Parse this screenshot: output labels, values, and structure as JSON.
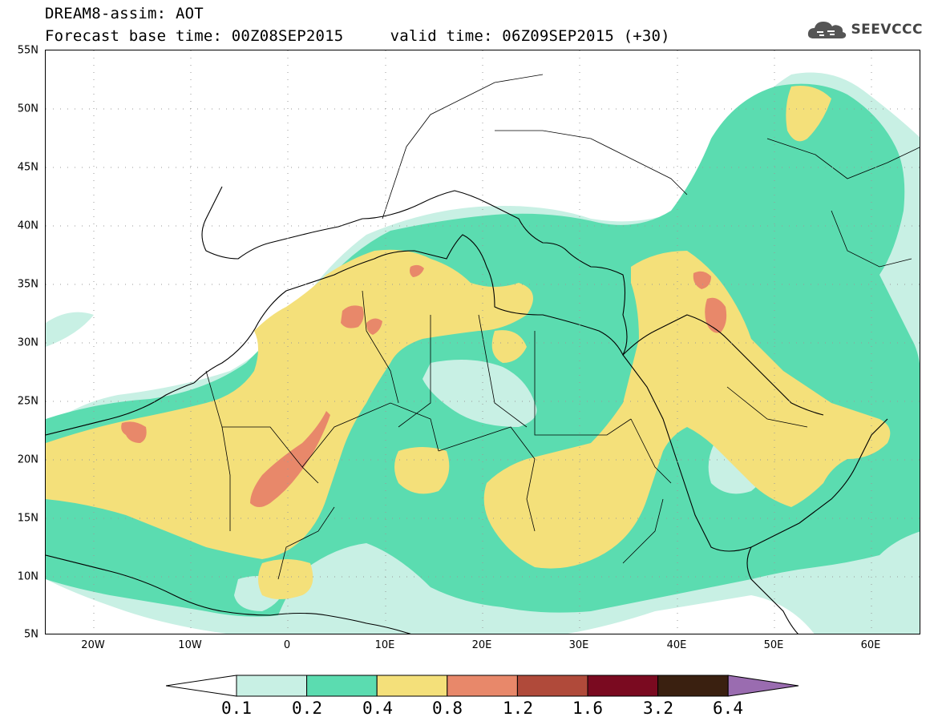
{
  "title": {
    "line1": "DREAM8-assim: AOT",
    "line2": "Forecast base time: 00Z08SEP2015     valid time: 06Z09SEP2015 (+30)"
  },
  "logo": {
    "text": "SEEVCCC",
    "icon": "cloud-icon"
  },
  "map": {
    "lat_labels": [
      "55N",
      "50N",
      "45N",
      "40N",
      "35N",
      "30N",
      "25N",
      "20N",
      "15N",
      "10N",
      "5N"
    ],
    "lon_labels": [
      "20W",
      "10W",
      "0",
      "10E",
      "20E",
      "30E",
      "40E",
      "50E",
      "60E"
    ]
  },
  "colorbar": {
    "labels": [
      "0.1",
      "0.2",
      "0.4",
      "0.8",
      "1.2",
      "1.6",
      "3.2",
      "6.4"
    ],
    "colors": [
      "#ffffff",
      "#c8f0e4",
      "#5bdcb0",
      "#f4e07a",
      "#e8886a",
      "#b04a3a",
      "#7a0a20",
      "#3a2010",
      "#9a6cb0"
    ]
  },
  "colors": {
    "class_01": "#c8f0e4",
    "class_02": "#5bdcb0",
    "class_04": "#f4e07a",
    "class_08": "#e8886a"
  }
}
